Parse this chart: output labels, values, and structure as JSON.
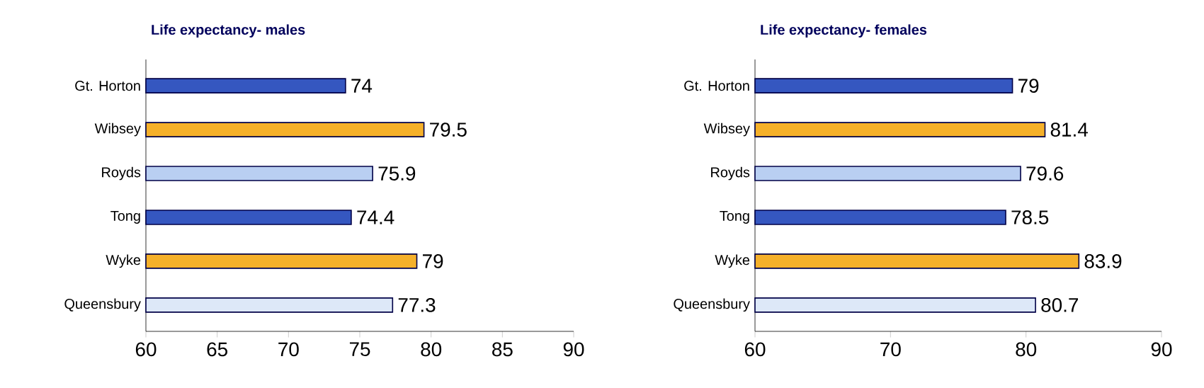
{
  "chart_data": [
    {
      "type": "bar",
      "orientation": "horizontal",
      "title": "Life expectancy- males",
      "categories": [
        "Gt. Horton",
        "Wibsey",
        "Royds",
        "Tong",
        "Wyke",
        "Queensbury"
      ],
      "values": [
        74,
        79.5,
        75.9,
        74.4,
        79,
        77.3
      ],
      "colors": [
        "#3557c0",
        "#f5b02a",
        "#b9cff2",
        "#3557c0",
        "#f5b02a",
        "#dde8f8"
      ],
      "xlim": [
        60,
        90
      ],
      "xticks": [
        60,
        65,
        70,
        75,
        80,
        85,
        90
      ],
      "data_labels": true
    },
    {
      "type": "bar",
      "orientation": "horizontal",
      "title": "Life expectancy- females",
      "categories": [
        "Gt. Horton",
        "Wibsey",
        "Royds",
        "Tong",
        "Wyke",
        "Queensbury"
      ],
      "values": [
        79,
        81.4,
        79.6,
        78.5,
        83.9,
        80.7
      ],
      "colors": [
        "#3557c0",
        "#f5b02a",
        "#b9cff2",
        "#3557c0",
        "#f5b02a",
        "#dde8f8"
      ],
      "xlim": [
        60,
        90
      ],
      "xticks": [
        60,
        70,
        80,
        90
      ],
      "data_labels": true
    }
  ]
}
